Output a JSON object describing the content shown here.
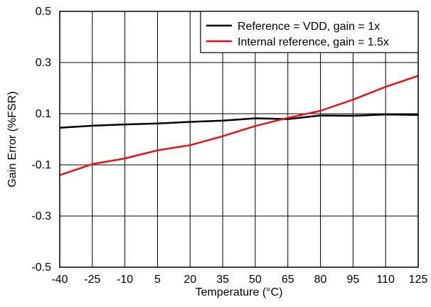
{
  "chart_data": {
    "type": "line",
    "title": "",
    "xlabel": "Temperature (°C)",
    "ylabel": "Gain Error (%FSR)",
    "x": [
      -40,
      -25,
      -10,
      5,
      20,
      35,
      50,
      65,
      80,
      95,
      110,
      125
    ],
    "xlim": [
      -40,
      125
    ],
    "ylim": [
      -0.5,
      0.5
    ],
    "yticks": [
      -0.5,
      -0.3,
      -0.1,
      0.1,
      0.3,
      0.5
    ],
    "yticklabels": [
      "-0.5",
      "-0.3",
      "-0.1",
      "0.1",
      "0.3",
      "0.5"
    ],
    "grid": true,
    "legend_position": "top-right",
    "series": [
      {
        "name": "Reference = VDD, gain = 1x",
        "color": "#000000",
        "values": [
          0.045,
          0.053,
          0.058,
          0.062,
          0.068,
          0.073,
          0.082,
          0.079,
          0.093,
          0.092,
          0.097,
          0.095
        ]
      },
      {
        "name": "Internal reference, gain = 1.5x",
        "color": "#e8101a",
        "values": [
          -0.14,
          -0.097,
          -0.075,
          -0.043,
          -0.023,
          0.012,
          0.052,
          0.084,
          0.111,
          0.155,
          0.205,
          0.248
        ]
      }
    ]
  }
}
